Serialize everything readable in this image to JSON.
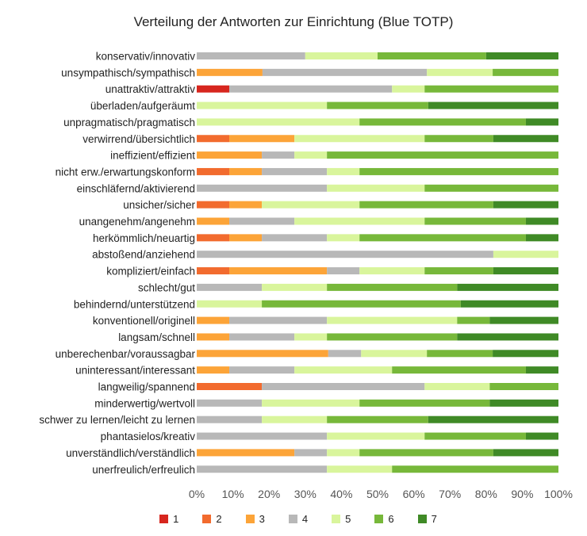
{
  "chart_data": {
    "type": "bar",
    "orientation": "horizontal",
    "stacked": "percent",
    "title": "Verteilung der Antworten zur Einrichtung (Blue TOTP)",
    "xlim": [
      0,
      100
    ],
    "x_ticks": [
      "0%",
      "10%",
      "20%",
      "30%",
      "40%",
      "50%",
      "60%",
      "70%",
      "80%",
      "90%",
      "100%"
    ],
    "grid": false,
    "legend_position": "bottom",
    "categories": [
      "konservativ/innovativ",
      "unsympathisch/sympathisch",
      "unattraktiv/attraktiv",
      "überladen/aufgeräumt",
      "unpragmatisch/pragmatisch",
      "verwirrend/übersichtlich",
      "ineffizient/effizient",
      "nicht erw./erwartungskonform",
      "einschläfernd/aktivierend",
      "unsicher/sicher",
      "unangenehm/angenehm",
      "herkömmlich/neuartig",
      "abstoßend/anziehend",
      "kompliziert/einfach",
      "schlecht/gut",
      "behindernd/unterstützend",
      "konventionell/originell",
      "langsam/schnell",
      "unberechenbar/voraussagbar",
      "uninteressant/interessant",
      "langweilig/spannend",
      "minderwertig/wertvoll",
      "schwer zu lernen/leicht zu lernen",
      "phantasielos/kreativ",
      "unverständlich/verständlich",
      "unerfreulich/erfreulich"
    ],
    "series": [
      {
        "name": "1",
        "color": "#d7261e",
        "values": [
          0,
          0,
          9,
          0,
          0,
          0,
          0,
          0,
          0,
          0,
          0,
          0,
          0,
          0,
          0,
          0,
          0,
          0,
          0,
          0,
          0,
          0,
          0,
          0,
          0,
          0
        ]
      },
      {
        "name": "2",
        "color": "#f26b2e",
        "values": [
          0,
          0,
          0,
          0,
          0,
          9,
          0,
          9,
          0,
          9,
          0,
          9,
          0,
          9,
          0,
          0,
          0,
          0,
          0,
          0,
          18,
          0,
          0,
          0,
          0,
          0
        ]
      },
      {
        "name": "3",
        "color": "#fca438",
        "values": [
          0,
          18,
          0,
          0,
          0,
          18,
          18,
          9,
          0,
          9,
          9,
          9,
          0,
          27,
          0,
          0,
          9,
          9,
          36,
          9,
          0,
          0,
          0,
          0,
          27,
          0
        ]
      },
      {
        "name": "4",
        "color": "#b8b8b8",
        "values": [
          27,
          45,
          45,
          0,
          0,
          0,
          9,
          18,
          36,
          0,
          18,
          18,
          82,
          9,
          18,
          0,
          27,
          18,
          9,
          18,
          45,
          18,
          18,
          36,
          9,
          36
        ]
      },
      {
        "name": "5",
        "color": "#d9f59c",
        "values": [
          18,
          18,
          9,
          36,
          45,
          36,
          9,
          9,
          27,
          27,
          36,
          9,
          18,
          18,
          18,
          18,
          36,
          9,
          18,
          27,
          18,
          27,
          18,
          27,
          9,
          18
        ]
      },
      {
        "name": "6",
        "color": "#77b83a",
        "values": [
          27,
          18,
          37,
          28,
          46,
          19,
          64,
          55,
          37,
          37,
          28,
          46,
          0,
          19,
          36,
          55,
          9,
          36,
          18,
          37,
          19,
          36,
          28,
          28,
          37,
          46
        ]
      },
      {
        "name": "7",
        "color": "#3f8a26",
        "values": [
          18,
          0,
          0,
          36,
          9,
          18,
          0,
          0,
          0,
          18,
          9,
          9,
          0,
          18,
          28,
          27,
          19,
          28,
          18,
          9,
          0,
          19,
          36,
          9,
          18,
          0
        ]
      }
    ]
  }
}
